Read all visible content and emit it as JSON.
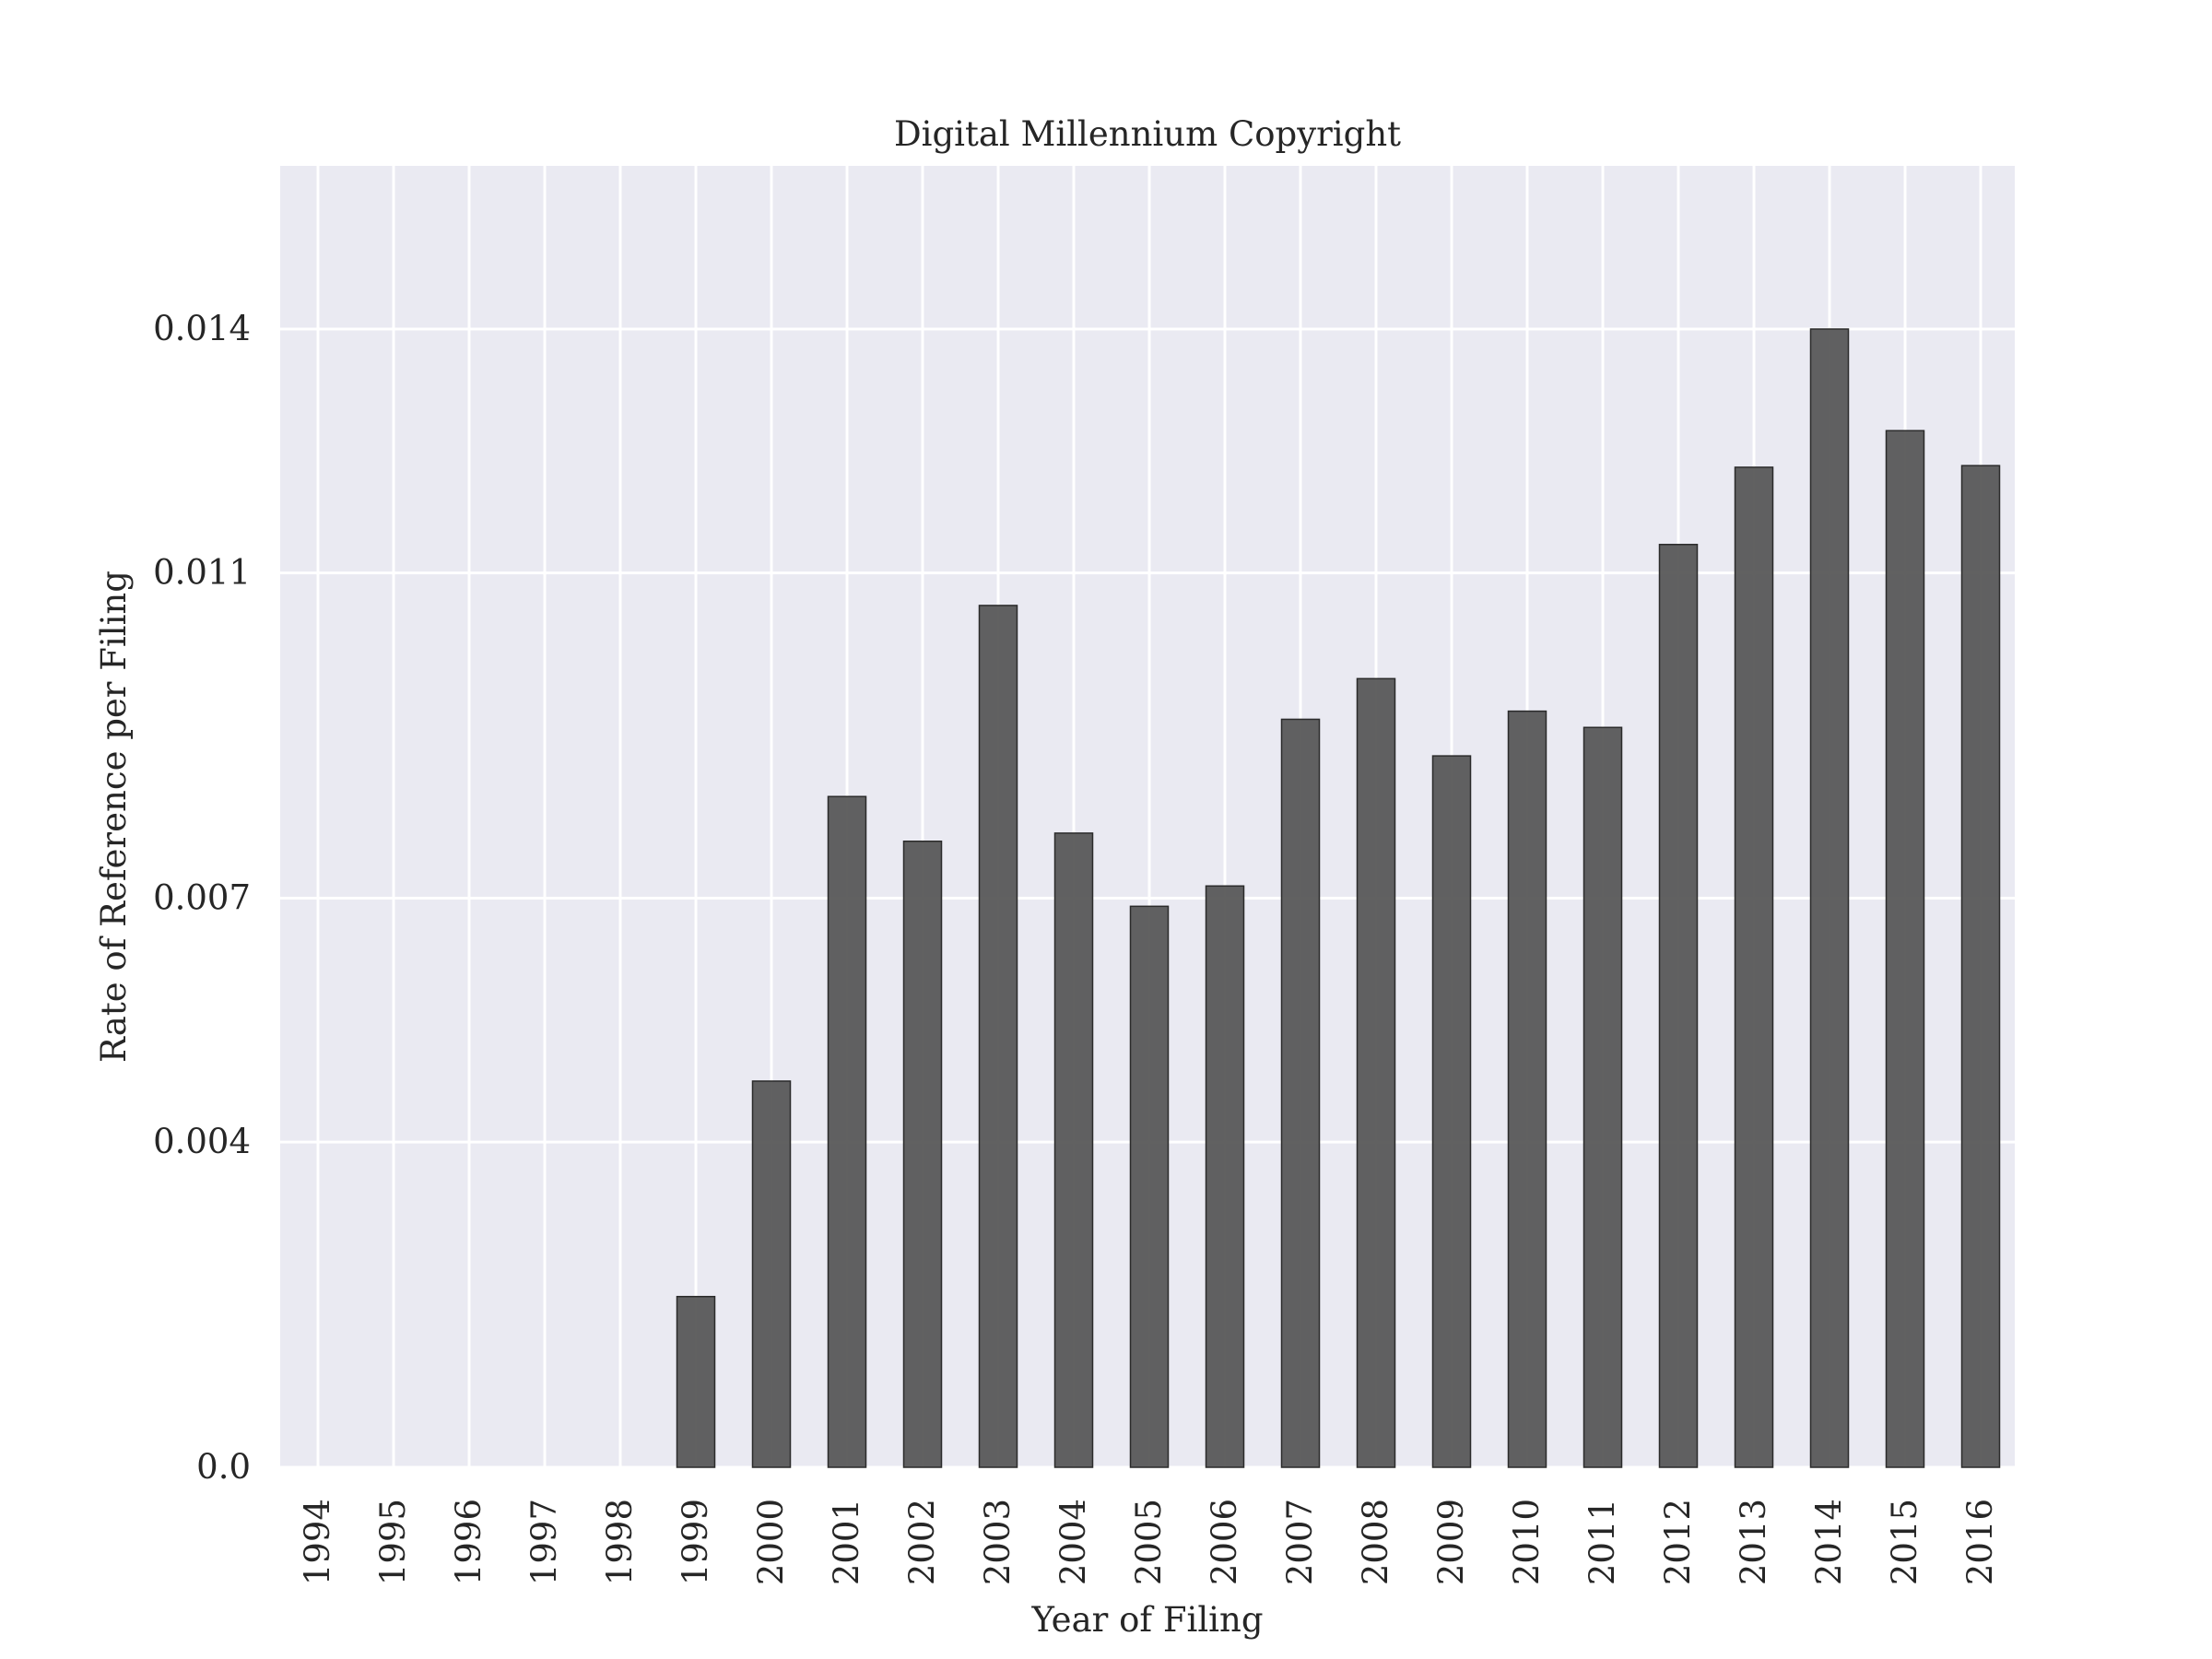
{
  "chart_data": {
    "type": "bar",
    "title": "Digital Millennium Copyright",
    "xlabel": "Year of Filing",
    "ylabel": "Rate of Reference per Filing",
    "categories": [
      "1994",
      "1995",
      "1996",
      "1997",
      "1998",
      "1999",
      "2000",
      "2001",
      "2002",
      "2003",
      "2004",
      "2005",
      "2006",
      "2007",
      "2008",
      "2009",
      "2010",
      "2011",
      "2012",
      "2013",
      "2014",
      "2015",
      "2016"
    ],
    "values": [
      0,
      0,
      0,
      0,
      0,
      0.0021,
      0.00475,
      0.00825,
      0.0077,
      0.0106,
      0.0078,
      0.0069,
      0.00715,
      0.0092,
      0.0097,
      0.00875,
      0.0093,
      0.0091,
      0.01135,
      0.0123,
      0.014,
      0.01275,
      0.01232
    ],
    "yticks": [
      0.0,
      0.004,
      0.007,
      0.011,
      0.014
    ],
    "ytick_labels": [
      "0.0",
      "0.004",
      "0.007",
      "0.011",
      "0.014"
    ],
    "ylim": [
      0,
      0.016
    ],
    "grid": true,
    "colors": {
      "bar": "#595959",
      "bar_edge": "#2b2b2b",
      "plot_background": "#eaeaf2",
      "grid": "#ffffff"
    }
  }
}
